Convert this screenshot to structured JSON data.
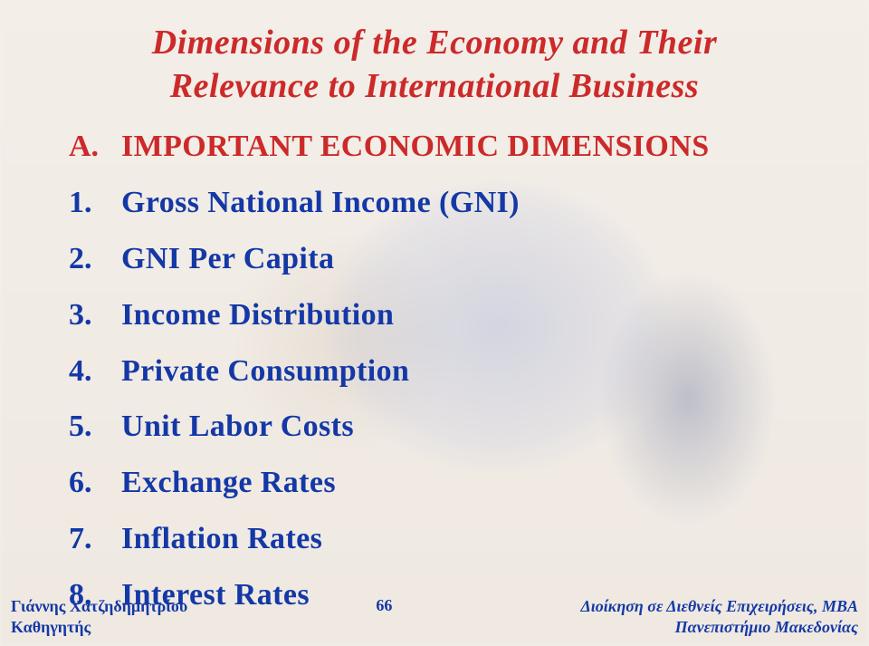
{
  "slide": {
    "title_line1": "Dimensions of the Economy and Their",
    "title_line2": "Relevance to International Business",
    "title_color": "#cc2a2a",
    "body_color": "#1438a6",
    "background_color": "#f3eee8",
    "title_fontsize": 38,
    "body_fontsize": 34,
    "font_family": "Times New Roman",
    "section": {
      "marker": "A.",
      "text": "IMPORTANT ECONOMIC DIMENSIONS"
    },
    "items": [
      {
        "marker": "1.",
        "text": "Gross National Income (GNI)"
      },
      {
        "marker": "2.",
        "text": "GNI  Per Capita"
      },
      {
        "marker": "3.",
        "text": "Income Distribution"
      },
      {
        "marker": "4.",
        "text": "Private Consumption"
      },
      {
        "marker": "5.",
        "text": "Unit Labor Costs"
      },
      {
        "marker": "6.",
        "text": "Exchange Rates"
      },
      {
        "marker": "7.",
        "text": "Inflation Rates"
      },
      {
        "marker": "8.",
        "text": "Interest Rates"
      }
    ]
  },
  "footer": {
    "left_line1": "Γιάννης Χατζηδημητρίου",
    "left_line2": "Καθηγητής",
    "page_number": "66",
    "right_line1": "Διοίκηση σε Διεθνείς Επιχειρήσεις, MBA",
    "right_line2": "Πανεπιστήμιο Μακεδονίας",
    "color": "#1438a6",
    "fontsize": 18
  }
}
